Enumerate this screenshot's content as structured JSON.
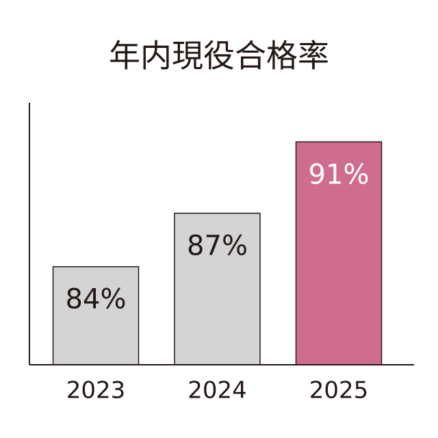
{
  "chart_data": {
    "type": "bar",
    "title": "年内現役合格率",
    "categories": [
      "2023",
      "2024",
      "2025"
    ],
    "values": [
      84,
      87,
      91
    ],
    "value_labels": [
      "84%",
      "87%",
      "91%"
    ],
    "colors": [
      "#d4d4d4",
      "#d4d4d4",
      "#cf6d8f"
    ],
    "ylim": [
      78.5,
      93.2
    ]
  }
}
